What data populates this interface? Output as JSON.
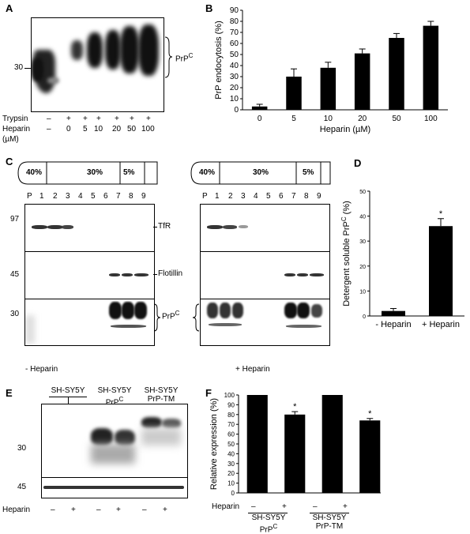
{
  "panels": {
    "A": {
      "letter": "A",
      "mw": "30",
      "band_label": "PrP",
      "band_label_sup": "C",
      "trypsin_label": "Trypsin",
      "heparin_label": "Heparin",
      "unit_label": "(µM)",
      "trypsin_marks": [
        "–",
        "+",
        "+",
        "+",
        "+",
        "+",
        "+"
      ],
      "heparin_values": [
        "–",
        "0",
        "5",
        "10",
        "20",
        "50",
        "100"
      ]
    },
    "B": {
      "letter": "B"
    },
    "C": {
      "letter": "C",
      "gradient": [
        "40%",
        "30%",
        "5%"
      ],
      "fractions": [
        "P",
        "1",
        "2",
        "3",
        "4",
        "5",
        "6",
        "7",
        "8",
        "9"
      ],
      "mw_top": "97",
      "mw_mid": "45",
      "mw_bot": "30",
      "tfr_label": "TfR",
      "flotillin_label": "Flotillin",
      "prp_label": "PrP",
      "prp_sup": "C",
      "minus_heparin": "- Heparin",
      "plus_heparin": "+ Heparin"
    },
    "D": {
      "letter": "D"
    },
    "E": {
      "letter": "E",
      "groups": [
        {
          "line1": "SH-SY5Y",
          "line2": "",
          "sup": ""
        },
        {
          "line1": "SH-SY5Y",
          "line2": "PrP",
          "sup": "C"
        },
        {
          "line1": "SH-SY5Y",
          "line2": "PrP-TM",
          "sup": ""
        }
      ],
      "mw_top": "30",
      "mw_bot": "45",
      "heparin_label": "Heparin",
      "marks": [
        "–",
        "+",
        "–",
        "+",
        "–",
        "+"
      ]
    },
    "F": {
      "letter": "F",
      "heparin_label": "Heparin",
      "marks": [
        "–",
        "+",
        "–",
        "+"
      ],
      "group1_line1": "SH-SY5Y",
      "group1_line2": "PrP",
      "group1_sup": "C",
      "group2_line1": "SH-SY5Y",
      "group2_line2": "PrP-TM"
    }
  },
  "chart_data": [
    {
      "panel": "B",
      "type": "bar",
      "ylabel": "PrP endocytosis (%)",
      "xlabel": "Heparin (µM)",
      "categories": [
        "0",
        "5",
        "10",
        "20",
        "50",
        "100"
      ],
      "values": [
        3,
        30,
        38,
        51,
        65,
        76
      ],
      "errors": [
        2,
        7,
        5,
        4,
        4,
        4
      ],
      "ylim": [
        0,
        90
      ],
      "yticks": [
        "0",
        "10",
        "20",
        "30",
        "40",
        "50",
        "60",
        "70",
        "80",
        "90"
      ],
      "color": "#000000"
    },
    {
      "panel": "D",
      "type": "bar",
      "ylabel": "Detergent soluble PrP",
      "ylabel_sup": "C",
      "ylabel_unit": " (%)",
      "categories": [
        "- Heparin",
        "+ Heparin"
      ],
      "values": [
        2,
        36
      ],
      "errors": [
        1,
        3
      ],
      "significance": [
        "",
        "*"
      ],
      "ylim": [
        0,
        50
      ],
      "yticks": [
        "0",
        "10",
        "20",
        "30",
        "40",
        "50"
      ],
      "color": "#000000"
    },
    {
      "panel": "F",
      "type": "bar",
      "ylabel": "Relative expression (%)",
      "categories": [
        "–",
        "+",
        "–",
        "+"
      ],
      "values": [
        100,
        80,
        100,
        74
      ],
      "errors": [
        0,
        3,
        0,
        2
      ],
      "significance": [
        "",
        "*",
        "",
        "*"
      ],
      "ylim": [
        0,
        100
      ],
      "yticks": [
        "0",
        "10",
        "20",
        "30",
        "40",
        "50",
        "60",
        "70",
        "80",
        "90",
        "100"
      ],
      "color": "#000000"
    }
  ]
}
